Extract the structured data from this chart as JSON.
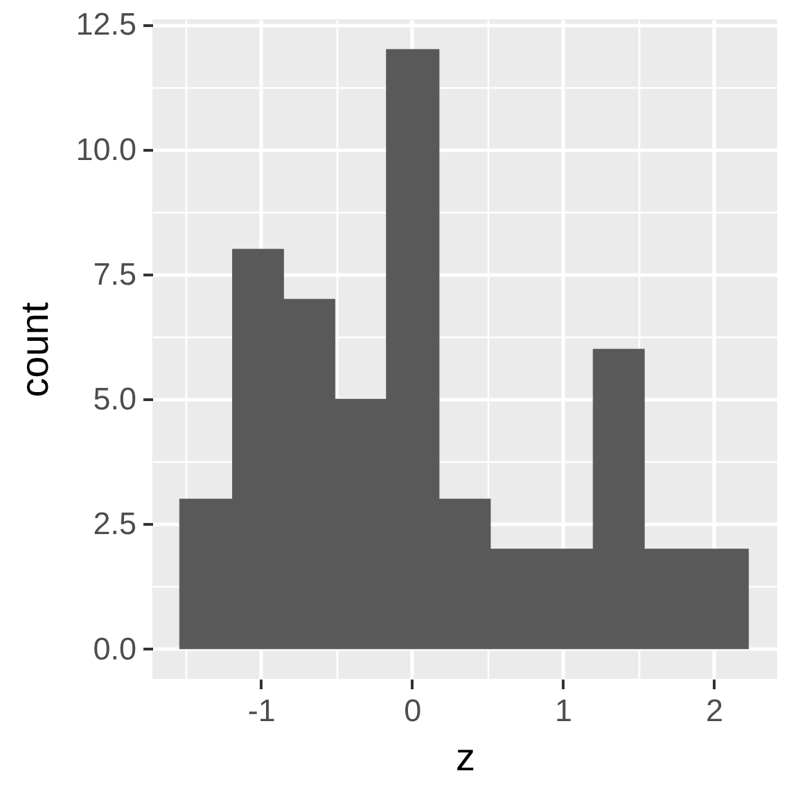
{
  "chart_data": {
    "type": "histogram",
    "xlabel": "z",
    "ylabel": "count",
    "color": "#595959",
    "bins": [
      -1.54,
      -1.19,
      -0.85,
      -0.51,
      -0.17,
      0.18,
      0.52,
      0.86,
      1.2,
      1.54,
      1.89,
      2.23
    ],
    "values": [
      3,
      8,
      7,
      5,
      12,
      3,
      2,
      2,
      6,
      2,
      2
    ],
    "xlim": [
      -1.72,
      2.42
    ],
    "ylim": [
      -0.6,
      12.6
    ],
    "xticks": [
      -1,
      0,
      1,
      2
    ],
    "yticks": [
      {
        "value": 0,
        "label": "0.0"
      },
      2.5,
      {
        "value": 5,
        "label": "5.0"
      },
      7.5,
      {
        "value": 10,
        "label": "10.0"
      },
      12.5
    ],
    "grid": true
  }
}
